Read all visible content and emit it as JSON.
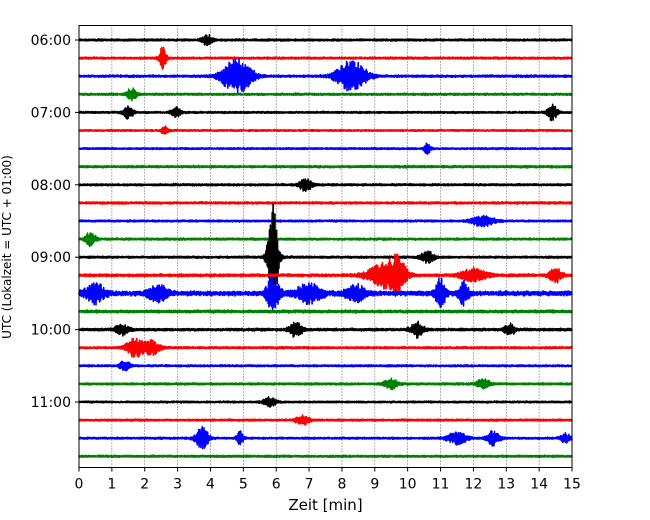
{
  "chart_data": {
    "type": "line",
    "subtype": "helicorder",
    "title": "",
    "xlabel": "Zeit  [min]",
    "ylabel": "UTC (Lokalzeit = UTC + 01:00)",
    "xlim": [
      0,
      15
    ],
    "x_ticks": [
      0,
      1,
      2,
      3,
      4,
      5,
      6,
      7,
      8,
      9,
      10,
      11,
      12,
      13,
      14,
      15
    ],
    "x_tick_labels": [
      "0",
      "1",
      "2",
      "3",
      "4",
      "5",
      "6",
      "7",
      "8",
      "9",
      "10",
      "11",
      "12",
      "13",
      "14",
      "15"
    ],
    "y_tick_labels": [
      "06:00",
      "07:00",
      "08:00",
      "09:00",
      "10:00",
      "11:00"
    ],
    "grid": {
      "x": true,
      "style": "dotted"
    },
    "legend": "none",
    "trace_interval_min": 15,
    "trace_colors": [
      "#000000",
      "#ff0000",
      "#0000ff",
      "#008000"
    ],
    "traces": [
      {
        "start": "06:00",
        "noise": 0.55,
        "events": [
          [
            3.9,
            0.9,
            0.15
          ]
        ]
      },
      {
        "start": "06:15",
        "noise": 0.55,
        "events": [
          [
            2.55,
            1.9,
            0.1
          ]
        ]
      },
      {
        "start": "06:30",
        "noise": 0.6,
        "events": [
          [
            4.8,
            3.0,
            0.45
          ],
          [
            8.3,
            2.6,
            0.45
          ]
        ]
      },
      {
        "start": "06:45",
        "noise": 0.55,
        "events": [
          [
            1.6,
            1.1,
            0.15
          ]
        ]
      },
      {
        "start": "07:00",
        "noise": 0.5,
        "events": [
          [
            1.5,
            1.0,
            0.15
          ],
          [
            2.95,
            1.0,
            0.15
          ],
          [
            14.4,
            1.3,
            0.15
          ]
        ]
      },
      {
        "start": "07:15",
        "noise": 0.45,
        "events": [
          [
            2.6,
            0.7,
            0.1
          ]
        ]
      },
      {
        "start": "07:30",
        "noise": 0.45,
        "events": [
          [
            10.6,
            0.9,
            0.1
          ]
        ]
      },
      {
        "start": "07:45",
        "noise": 0.6,
        "events": []
      },
      {
        "start": "08:00",
        "noise": 0.55,
        "events": [
          [
            6.9,
            1.0,
            0.2
          ]
        ]
      },
      {
        "start": "08:15",
        "noise": 0.6,
        "events": []
      },
      {
        "start": "08:30",
        "noise": 0.5,
        "events": [
          [
            12.3,
            0.9,
            0.35
          ]
        ]
      },
      {
        "start": "08:45",
        "noise": 0.55,
        "events": [
          [
            0.35,
            1.3,
            0.15
          ]
        ]
      },
      {
        "start": "09:00",
        "noise": 0.55,
        "events": [
          [
            5.9,
            9.0,
            0.15
          ],
          [
            10.6,
            1.0,
            0.2
          ]
        ]
      },
      {
        "start": "09:15",
        "noise": 0.75,
        "events": [
          [
            9.3,
            2.0,
            0.5
          ],
          [
            9.7,
            2.4,
            0.25
          ],
          [
            12.0,
            1.1,
            0.4
          ],
          [
            14.5,
            1.2,
            0.2
          ]
        ]
      },
      {
        "start": "09:30",
        "noise": 1.3,
        "events": [
          [
            0.5,
            1.6,
            0.3
          ],
          [
            2.4,
            1.4,
            0.3
          ],
          [
            5.9,
            2.8,
            0.2
          ],
          [
            7.0,
            1.5,
            0.4
          ],
          [
            8.4,
            1.4,
            0.3
          ],
          [
            11.0,
            2.4,
            0.15
          ],
          [
            11.7,
            1.8,
            0.15
          ]
        ]
      },
      {
        "start": "09:45",
        "noise": 0.75,
        "events": []
      },
      {
        "start": "10:00",
        "noise": 0.7,
        "events": [
          [
            1.3,
            0.9,
            0.2
          ],
          [
            6.6,
            1.3,
            0.2
          ],
          [
            10.3,
            1.3,
            0.2
          ],
          [
            13.1,
            1.1,
            0.15
          ]
        ]
      },
      {
        "start": "10:15",
        "noise": 0.55,
        "events": [
          [
            1.7,
            1.6,
            0.25
          ],
          [
            2.2,
            1.2,
            0.25
          ]
        ]
      },
      {
        "start": "10:30",
        "noise": 0.5,
        "events": [
          [
            1.4,
            0.9,
            0.15
          ]
        ]
      },
      {
        "start": "10:45",
        "noise": 0.55,
        "events": [
          [
            9.5,
            0.9,
            0.2
          ],
          [
            12.3,
            0.9,
            0.2
          ]
        ]
      },
      {
        "start": "11:00",
        "noise": 0.45,
        "events": [
          [
            5.8,
            0.8,
            0.2
          ]
        ]
      },
      {
        "start": "11:15",
        "noise": 0.5,
        "events": [
          [
            6.8,
            0.9,
            0.2
          ]
        ]
      },
      {
        "start": "11:30",
        "noise": 0.5,
        "events": [
          [
            3.75,
            1.8,
            0.2
          ],
          [
            4.9,
            1.2,
            0.1
          ],
          [
            11.5,
            1.0,
            0.3
          ],
          [
            12.6,
            1.2,
            0.2
          ],
          [
            14.8,
            0.8,
            0.15
          ]
        ]
      },
      {
        "start": "11:45",
        "noise": 0.55,
        "events": []
      }
    ]
  }
}
